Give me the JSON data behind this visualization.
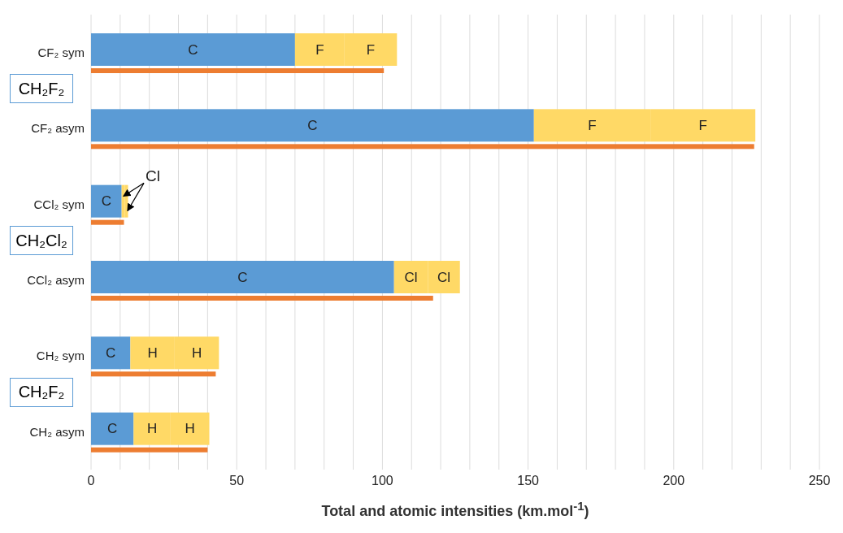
{
  "chart_data": [
    {
      "type": "bar",
      "orientation": "horizontal",
      "stacked": true,
      "categories": [
        "CF₂ sym",
        "CF₂ asym",
        "CCl₂ sym",
        "CCl₂ asym",
        "CH₂ sym",
        "CH₂ asym"
      ],
      "series": [
        {
          "color": "#5b9bd5",
          "values": [
            70,
            152,
            10.5,
            104,
            13.5,
            14.6
          ],
          "value_labels": [
            "C",
            "C",
            "C",
            "C",
            "C",
            "C"
          ]
        },
        {
          "color": "#ffd966",
          "values": [
            17,
            40,
            1.1,
            11.6,
            15.2,
            12.7
          ],
          "value_labels": [
            "F",
            "F",
            null,
            "Cl",
            "H",
            "H"
          ]
        },
        {
          "color": "#ffd966",
          "values": [
            18,
            36,
            1.1,
            11,
            15.2,
            13.3
          ],
          "value_labels": [
            "F",
            "F",
            null,
            "Cl",
            "H",
            "H"
          ]
        }
      ],
      "xlim": [
        0,
        250
      ],
      "tick_labels": "y",
      "annotations": [
        "CH₂F₂",
        "CH₂Cl₂",
        "CH₂F₂",
        {
          "text": "Cl",
          "x": 12,
          "y": "CCl₂ sym"
        }
      ]
    },
    {
      "type": "bar",
      "orientation": "horizontal",
      "categories": [
        null,
        null,
        null,
        null,
        null,
        null
      ],
      "values": [
        100.5,
        227.6,
        11.3,
        117.4,
        42.8,
        40
      ],
      "color": "#ed7d31",
      "xlabel": "Total and atomic intensities (km.mol$^{-1}$)",
      "xlim": [
        0,
        250
      ],
      "xticks": [
        0,
        {
          "value": 10,
          "label": null
        },
        {
          "value": 20,
          "label": null
        },
        {
          "value": 30,
          "label": null
        },
        {
          "value": 40,
          "label": null
        },
        50,
        {
          "value": 60,
          "label": null
        },
        {
          "value": 70,
          "label": null
        },
        {
          "value": 80,
          "label": null
        },
        {
          "value": 90,
          "label": null
        },
        100,
        {
          "value": 110,
          "label": null
        },
        {
          "value": 120,
          "label": null
        },
        {
          "value": 130,
          "label": null
        },
        {
          "value": 140,
          "label": null
        },
        150,
        {
          "value": 160,
          "label": null
        },
        {
          "value": 170,
          "label": null
        },
        {
          "value": 180,
          "label": null
        },
        {
          "value": 190,
          "label": null
        },
        200,
        {
          "value": 210,
          "label": null
        },
        {
          "value": 220,
          "label": null
        },
        {
          "value": 230,
          "label": null
        },
        {
          "value": 240,
          "label": null
        },
        250
      ],
      "grid": "x"
    }
  ]
}
